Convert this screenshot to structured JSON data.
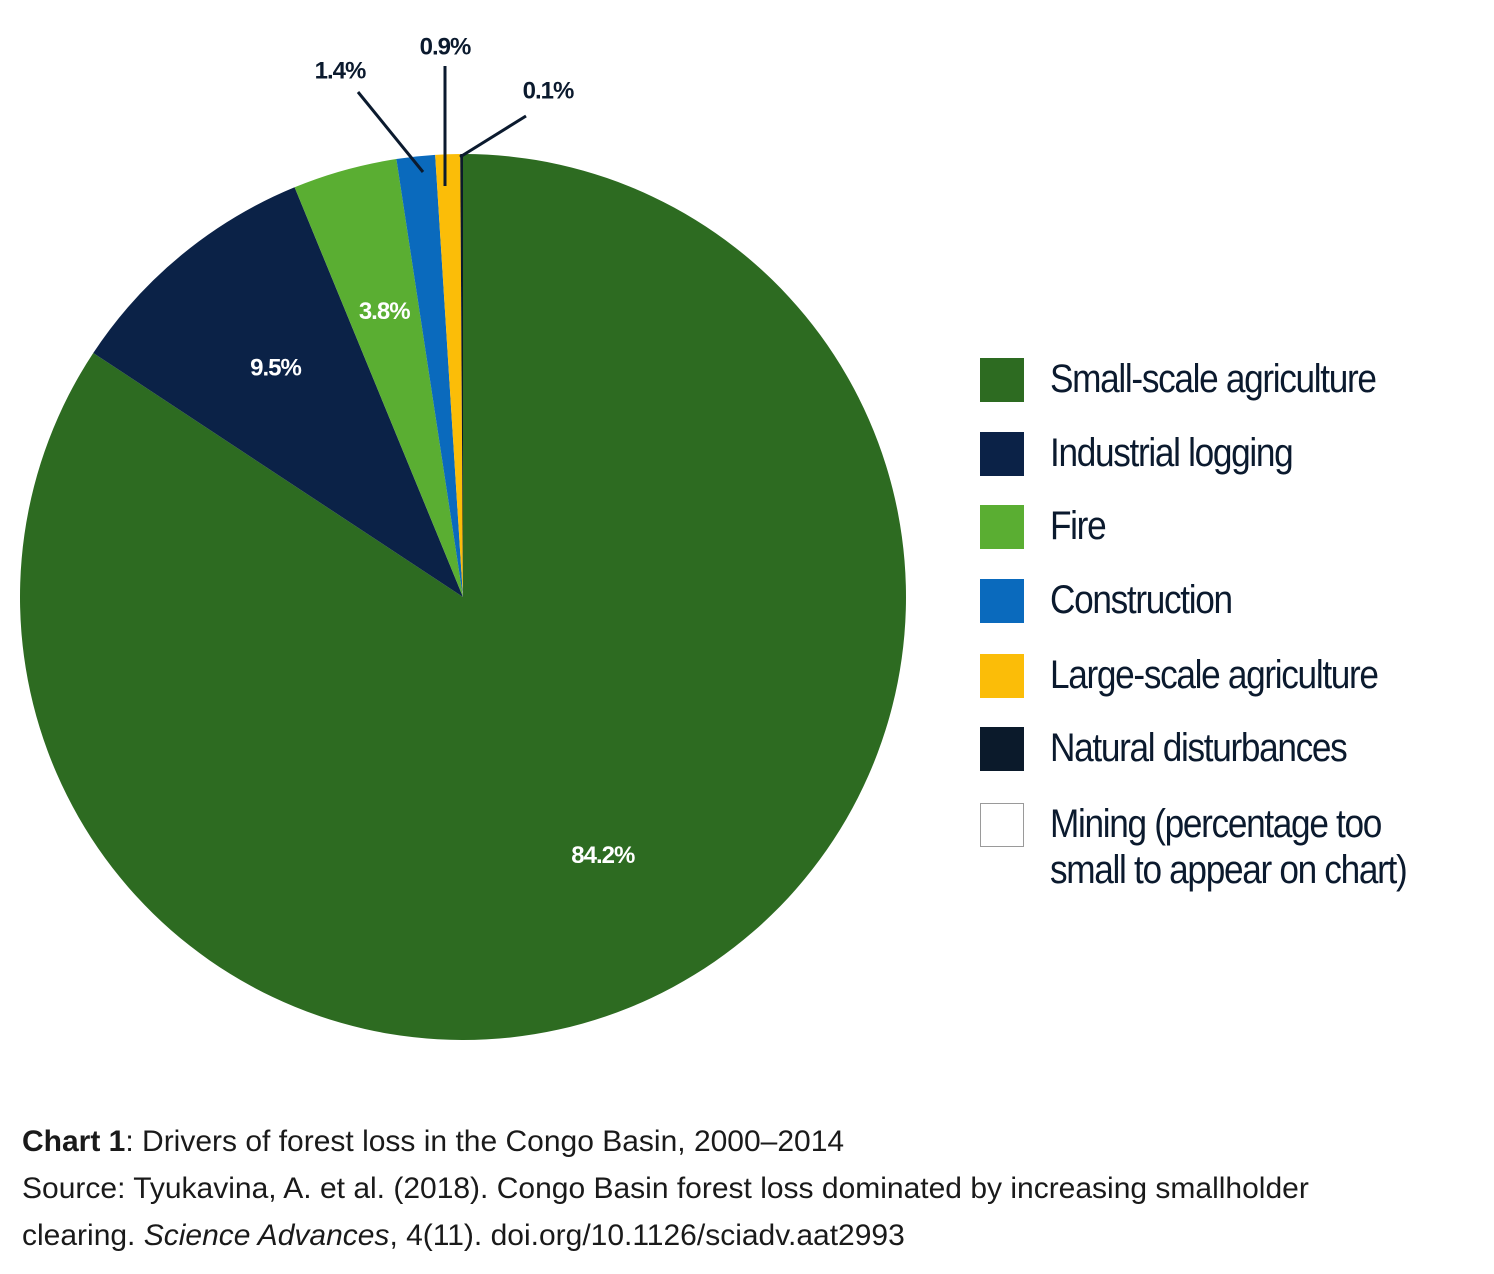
{
  "chart_data": {
    "type": "pie",
    "categories": [
      "Small-scale agriculture",
      "Industrial logging",
      "Fire",
      "Construction",
      "Large-scale agriculture",
      "Natural disturbances",
      "Mining (percentage too small to appear on chart)"
    ],
    "values": [
      84.2,
      9.5,
      3.8,
      1.4,
      0.9,
      0.1,
      0
    ],
    "value_labels": [
      "84.2%",
      "9.5%",
      "3.8%",
      "1.4%",
      "0.9%",
      "0.1%",
      null
    ],
    "colors": [
      "#2d6b21",
      "#0b2247",
      "#5aae32",
      "#0a6abd",
      "#fbbd08",
      "#0b1a2b",
      "#ffffff"
    ],
    "caption": {
      "label": "Chart 1",
      "text": ": Drivers of forest loss in the Congo Basin, 2000–2014"
    },
    "source": {
      "label": "Source",
      "text": ": Tyukavina, A. et al. (2018). Congo Basin forest loss dominated by increasing smallholder clearing. ",
      "journal": "Science Advances",
      "citation": ", 4(11). doi.org/10.1126/sciadv.aat2993"
    }
  }
}
